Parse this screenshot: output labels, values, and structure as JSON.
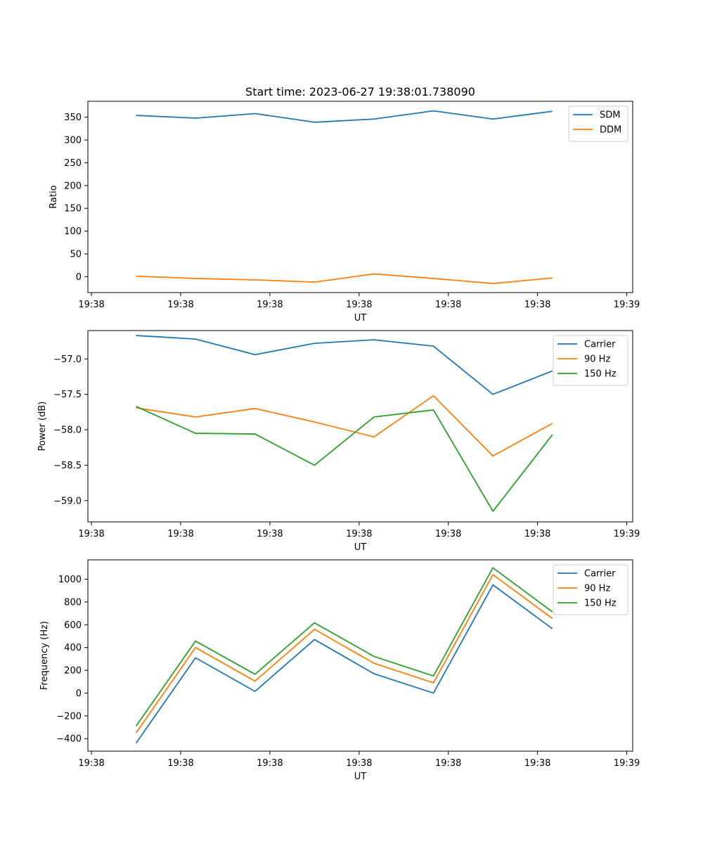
{
  "title": "Start time: 2023-06-27 19:38:01.738090",
  "colors": {
    "c1": "#1f77b4",
    "c2": "#ff7f0e",
    "c3": "#2ca02c"
  },
  "chart_data": [
    {
      "type": "line",
      "title": "Start time: 2023-06-27 19:38:01.738090",
      "xlabel": "UT",
      "ylabel": "Ratio",
      "xlim": [
        -0.81,
        8.35
      ],
      "ylim": [
        -35,
        385
      ],
      "x": [
        0,
        1,
        2,
        3,
        4,
        5,
        6,
        7
      ],
      "xticks": [
        -0.75,
        0.75,
        2.25,
        3.75,
        5.25,
        6.75,
        8.25
      ],
      "xticklabels": [
        "19:38",
        "19:38",
        "19:38",
        "19:38",
        "19:38",
        "19:38",
        "19:39"
      ],
      "yticks": [
        0,
        50,
        100,
        150,
        200,
        250,
        300,
        350
      ],
      "yticklabels": [
        "0",
        "50",
        "100",
        "150",
        "200",
        "250",
        "300",
        "350"
      ],
      "legend": "top-right",
      "series": [
        {
          "name": "SDM",
          "color": "#1f77b4",
          "values": [
            354,
            348,
            358,
            339,
            346,
            364,
            346,
            363
          ]
        },
        {
          "name": "DDM",
          "color": "#ff7f0e",
          "values": [
            1,
            -4,
            -7,
            -12,
            6,
            -4,
            -15,
            -3
          ]
        }
      ]
    },
    {
      "type": "line",
      "xlabel": "UT",
      "ylabel": "Power (dB)",
      "xlim": [
        -0.81,
        8.35
      ],
      "ylim": [
        -59.3,
        -56.6
      ],
      "x": [
        0,
        1,
        2,
        3,
        4,
        5,
        6,
        7
      ],
      "xticks": [
        -0.75,
        0.75,
        2.25,
        3.75,
        5.25,
        6.75,
        8.25
      ],
      "xticklabels": [
        "19:38",
        "19:38",
        "19:38",
        "19:38",
        "19:38",
        "19:38",
        "19:39"
      ],
      "yticks": [
        -59.0,
        -58.5,
        -58.0,
        -57.5,
        -57.0
      ],
      "yticklabels": [
        "−59.0",
        "−58.5",
        "−58.0",
        "−57.5",
        "−57.0"
      ],
      "legend": "top-right",
      "series": [
        {
          "name": "Carrier",
          "color": "#1f77b4",
          "values": [
            -56.67,
            -56.72,
            -56.94,
            -56.78,
            -56.73,
            -56.82,
            -57.5,
            -57.17
          ]
        },
        {
          "name": "90 Hz",
          "color": "#ff7f0e",
          "values": [
            -57.69,
            -57.82,
            -57.7,
            -57.89,
            -58.1,
            -57.52,
            -58.37,
            -57.91
          ]
        },
        {
          "name": "150 Hz",
          "color": "#2ca02c",
          "values": [
            -57.67,
            -58.05,
            -58.06,
            -58.5,
            -57.82,
            -57.72,
            -59.15,
            -58.07
          ]
        }
      ]
    },
    {
      "type": "line",
      "xlabel": "UT",
      "ylabel": "Frequency (Hz)",
      "xlim": [
        -0.81,
        8.35
      ],
      "ylim": [
        -510,
        1170
      ],
      "x": [
        0,
        1,
        2,
        3,
        4,
        5,
        6,
        7
      ],
      "xticks": [
        -0.75,
        0.75,
        2.25,
        3.75,
        5.25,
        6.75,
        8.25
      ],
      "xticklabels": [
        "19:38",
        "19:38",
        "19:38",
        "19:38",
        "19:38",
        "19:38",
        "19:39"
      ],
      "yticks": [
        -400,
        -200,
        0,
        200,
        400,
        600,
        800,
        1000
      ],
      "yticklabels": [
        "−400",
        "−200",
        "0",
        "200",
        "400",
        "600",
        "800",
        "1000"
      ],
      "legend": "top-right",
      "series": [
        {
          "name": "Carrier",
          "color": "#1f77b4",
          "values": [
            -440,
            310,
            15,
            470,
            170,
            0,
            950,
            565
          ]
        },
        {
          "name": "90 Hz",
          "color": "#ff7f0e",
          "values": [
            -350,
            400,
            105,
            560,
            262,
            90,
            1040,
            655
          ]
        },
        {
          "name": "150 Hz",
          "color": "#2ca02c",
          "values": [
            -290,
            457,
            165,
            617,
            322,
            150,
            1100,
            713
          ]
        }
      ]
    }
  ]
}
